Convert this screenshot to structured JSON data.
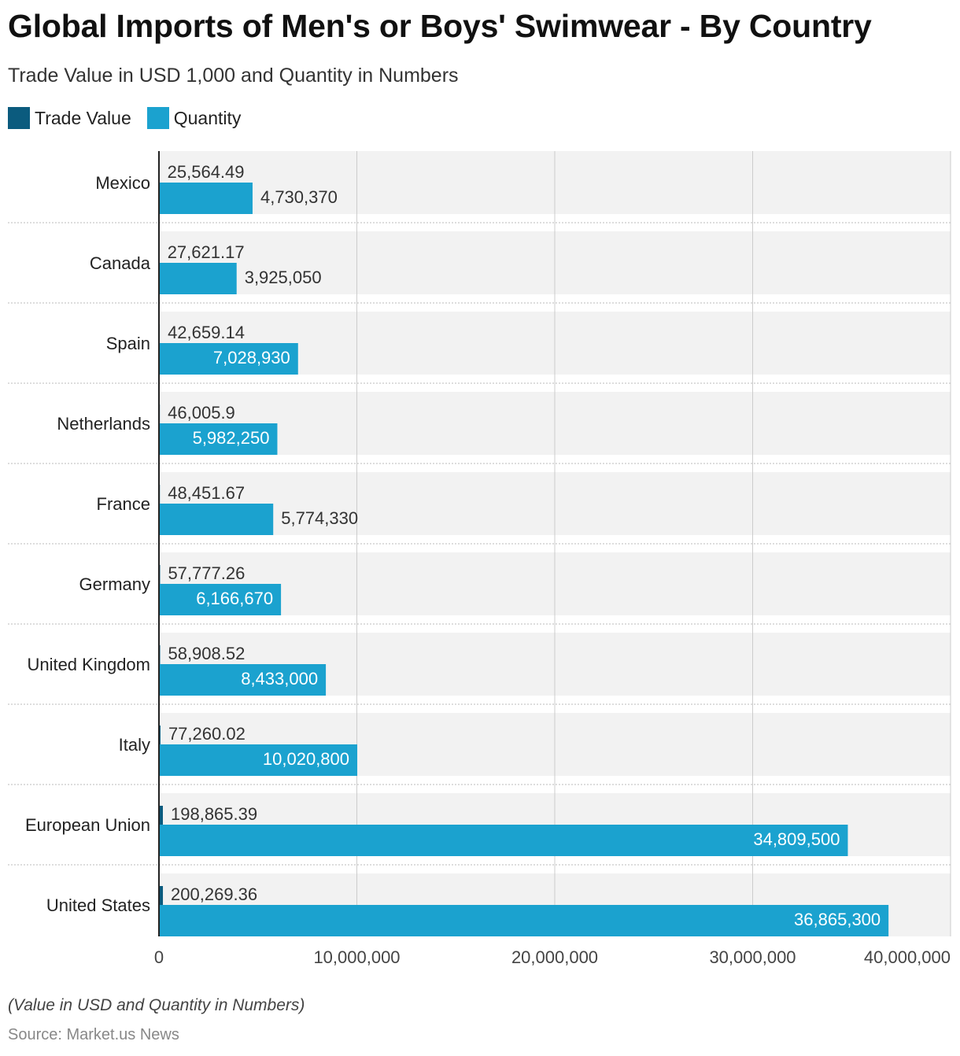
{
  "chart_data": {
    "type": "bar",
    "orientation": "horizontal",
    "title": "Global Imports of Men's or Boys' Swimwear - By Country",
    "subtitle": "Trade Value in USD 1,000 and Quantity in Numbers",
    "categories": [
      "Mexico",
      "Canada",
      "Spain",
      "Netherlands",
      "France",
      "Germany",
      "United Kingdom",
      "Italy",
      "European Union",
      "United States"
    ],
    "series": [
      {
        "name": "Trade Value",
        "color": "#0b5b7e",
        "values": [
          25564.49,
          27621.17,
          42659.14,
          46005.9,
          48451.67,
          57777.26,
          58908.52,
          77260.02,
          198865.39,
          200269.36
        ],
        "labels": [
          "25,564.49",
          "27,621.17",
          "42,659.14",
          "46,005.9",
          "48,451.67",
          "57,777.26",
          "58,908.52",
          "77,260.02",
          "198,865.39",
          "200,269.36"
        ]
      },
      {
        "name": "Quantity",
        "color": "#1ba2cf",
        "values": [
          4730370,
          3925050,
          7028930,
          5982250,
          5774330,
          6166670,
          8433000,
          10020800,
          34809500,
          36865300
        ],
        "labels": [
          "4,730,370",
          "3,925,050",
          "7,028,930",
          "5,982,250",
          "5,774,330",
          "6,166,670",
          "8,433,000",
          "10,020,800",
          "34,809,500",
          "36,865,300"
        ]
      }
    ],
    "xlim": [
      0,
      40000000
    ],
    "xticks": [
      0,
      10000000,
      20000000,
      30000000,
      40000000
    ],
    "xtick_labels": [
      "0",
      "10,000,000",
      "20,000,000",
      "30,000,000",
      "40,000,000"
    ],
    "grid": true,
    "legend_position": "top-left"
  },
  "note": "(Value in USD and Quantity in Numbers)",
  "source": "Source: Market.us News"
}
